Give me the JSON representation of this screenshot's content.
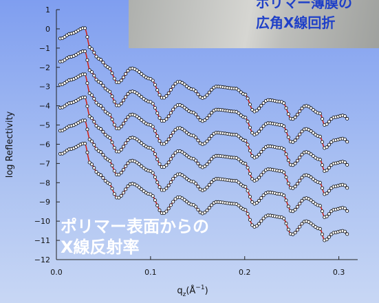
{
  "chart_data": {
    "type": "line",
    "xlabel": "q",
    "xlabel_sub": "z",
    "xlabel_unit": "(Å",
    "xlabel_sup": "−1",
    "xlabel_close": ")",
    "ylabel": "log Reflectivity",
    "xlim": [
      0.0,
      0.32
    ],
    "ylim": [
      -12,
      1
    ],
    "x_ticks": [
      "0.0",
      "0.1",
      "0.2",
      "0.3"
    ],
    "x_tick_values": [
      0.0,
      0.1,
      0.2,
      0.3
    ],
    "y_ticks": [
      "1",
      "0",
      "−1",
      "−2",
      "−3",
      "−4",
      "−5",
      "−6",
      "−7",
      "−8",
      "−9",
      "−10",
      "−11",
      "−12"
    ],
    "y_tick_values": [
      1,
      0,
      -1,
      -2,
      -3,
      -4,
      -5,
      -6,
      -7,
      -8,
      -9,
      -10,
      -11,
      -12
    ],
    "series_count": 6,
    "series_offsets": [
      0,
      -1.2,
      -2.4,
      -3.6,
      -4.8,
      -6.0
    ],
    "critical_edge_q": 0.032,
    "top_curve_points": [
      [
        0.005,
        -0.5
      ],
      [
        0.015,
        -0.25
      ],
      [
        0.03,
        0.05
      ],
      [
        0.036,
        -1.0
      ],
      [
        0.045,
        -1.55
      ],
      [
        0.055,
        -2.0
      ],
      [
        0.065,
        -2.8
      ],
      [
        0.08,
        -2.05
      ],
      [
        0.1,
        -2.6
      ],
      [
        0.113,
        -3.6
      ],
      [
        0.13,
        -2.75
      ],
      [
        0.145,
        -3.15
      ],
      [
        0.155,
        -3.6
      ],
      [
        0.17,
        -3.0
      ],
      [
        0.19,
        -3.1
      ],
      [
        0.2,
        -3.4
      ],
      [
        0.21,
        -4.3
      ],
      [
        0.225,
        -3.7
      ],
      [
        0.24,
        -3.8
      ],
      [
        0.25,
        -4.7
      ],
      [
        0.265,
        -4.0
      ],
      [
        0.28,
        -4.4
      ],
      [
        0.285,
        -5.0
      ],
      [
        0.295,
        -4.6
      ],
      [
        0.305,
        -4.5
      ],
      [
        0.31,
        -4.7
      ]
    ],
    "colors": {
      "fit_line": "#d0261c",
      "data_point": "#000000",
      "point_fill": "#ffffff"
    }
  },
  "annotations": {
    "reflectivity_line1": "ポリマー表面からの",
    "reflectivity_line2": "X線反射率",
    "inset_line1": "ポリマー薄膜の",
    "inset_line2": "広角X線回折"
  }
}
